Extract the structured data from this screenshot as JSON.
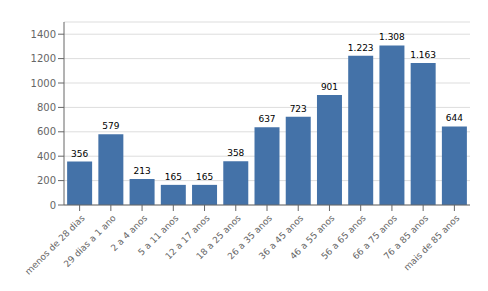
{
  "chart_data": {
    "type": "bar",
    "categories": [
      "menos de 28 dias",
      "29 dias a 1 ano",
      "2 a 4 anos",
      "5 a 11 anos",
      "12 a 17 anos",
      "18 a 25 anos",
      "26 a 35 anos",
      "36 a 45 anos",
      "46 a 55 anos",
      "56 a 65 anos",
      "66 a 75 anos",
      "76 a 85 anos",
      "mais de 85 anos"
    ],
    "values": [
      356,
      579,
      213,
      165,
      165,
      358,
      637,
      723,
      901,
      1223,
      1308,
      1163,
      644
    ],
    "value_labels": [
      "356",
      "579",
      "213",
      "165",
      "165",
      "358",
      "637",
      "723",
      "901",
      "1.223",
      "1.308",
      "1.163",
      "644"
    ],
    "data_labels": true,
    "color": "#4472a8",
    "ylim": [
      0,
      1500
    ],
    "yticks": [
      0,
      200,
      400,
      600,
      800,
      1000,
      1200,
      1400
    ],
    "grid": true
  }
}
